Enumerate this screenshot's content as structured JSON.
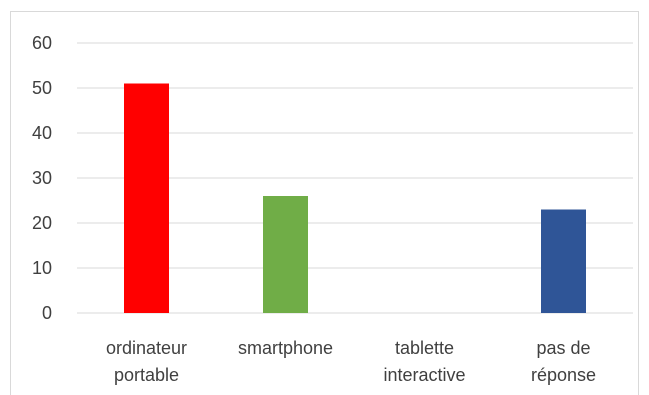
{
  "chart_data": {
    "type": "bar",
    "categories": [
      [
        "ordinateur",
        "portable"
      ],
      [
        "smartphone"
      ],
      [
        "tablette",
        "interactive"
      ],
      [
        "pas de",
        "réponse"
      ]
    ],
    "values": [
      51,
      26,
      0,
      23
    ],
    "colors": [
      "#ff0000",
      "#70ad47",
      "#70ad47",
      "#2f5597"
    ],
    "ylim": [
      0,
      60
    ],
    "yticks": [
      0,
      10,
      20,
      30,
      40,
      50,
      60
    ],
    "grid": true,
    "title": "",
    "xlabel": "",
    "ylabel": ""
  }
}
